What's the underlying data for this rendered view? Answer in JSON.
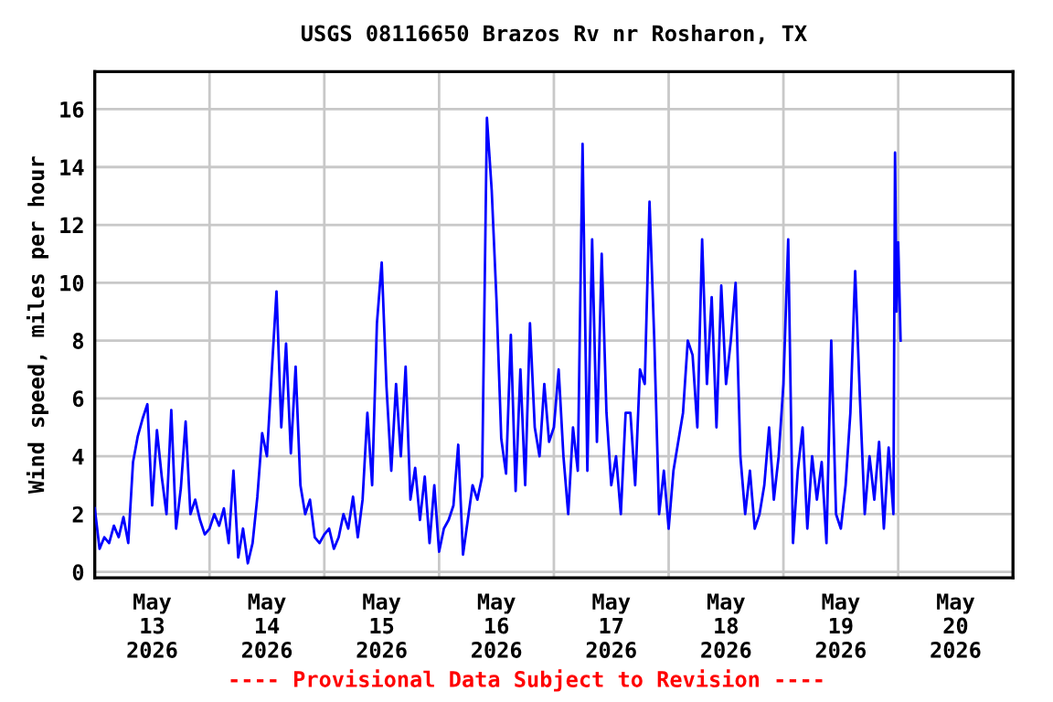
{
  "chart_data": {
    "type": "line",
    "title": "USGS 08116650 Brazos Rv nr Rosharon, TX",
    "ylabel": "Wind speed, miles per hour",
    "annotations": [
      "---- Provisional Data Subject to Revision ----"
    ],
    "x": [
      "2026-05-13T00:00",
      "2026-05-13T01:00",
      "2026-05-13T02:00",
      "2026-05-13T03:00",
      "2026-05-13T04:00",
      "2026-05-13T05:00",
      "2026-05-13T06:00",
      "2026-05-13T07:00",
      "2026-05-13T08:00",
      "2026-05-13T09:00",
      "2026-05-13T10:00",
      "2026-05-13T11:00",
      "2026-05-13T12:00",
      "2026-05-13T13:00",
      "2026-05-13T14:00",
      "2026-05-13T15:00",
      "2026-05-13T16:00",
      "2026-05-13T17:00",
      "2026-05-13T18:00",
      "2026-05-13T19:00",
      "2026-05-13T20:00",
      "2026-05-13T21:00",
      "2026-05-13T22:00",
      "2026-05-13T23:00",
      "2026-05-14T00:00",
      "2026-05-14T01:00",
      "2026-05-14T02:00",
      "2026-05-14T03:00",
      "2026-05-14T04:00",
      "2026-05-14T05:00",
      "2026-05-14T06:00",
      "2026-05-14T07:00",
      "2026-05-14T08:00",
      "2026-05-14T09:00",
      "2026-05-14T10:00",
      "2026-05-14T11:00",
      "2026-05-14T12:00",
      "2026-05-14T13:00",
      "2026-05-14T14:00",
      "2026-05-14T15:00",
      "2026-05-14T16:00",
      "2026-05-14T17:00",
      "2026-05-14T18:00",
      "2026-05-14T19:00",
      "2026-05-14T20:00",
      "2026-05-14T21:00",
      "2026-05-14T22:00",
      "2026-05-14T23:00",
      "2026-05-15T00:00",
      "2026-05-15T01:00",
      "2026-05-15T02:00",
      "2026-05-15T03:00",
      "2026-05-15T04:00",
      "2026-05-15T05:00",
      "2026-05-15T06:00",
      "2026-05-15T07:00",
      "2026-05-15T08:00",
      "2026-05-15T09:00",
      "2026-05-15T10:00",
      "2026-05-15T11:00",
      "2026-05-15T12:00",
      "2026-05-15T13:00",
      "2026-05-15T14:00",
      "2026-05-15T15:00",
      "2026-05-15T16:00",
      "2026-05-15T17:00",
      "2026-05-15T18:00",
      "2026-05-15T19:00",
      "2026-05-15T20:00",
      "2026-05-15T21:00",
      "2026-05-15T22:00",
      "2026-05-15T23:00",
      "2026-05-16T00:00",
      "2026-05-16T01:00",
      "2026-05-16T02:00",
      "2026-05-16T03:00",
      "2026-05-16T04:00",
      "2026-05-16T05:00",
      "2026-05-16T06:00",
      "2026-05-16T07:00",
      "2026-05-16T08:00",
      "2026-05-16T09:00",
      "2026-05-16T10:00",
      "2026-05-16T11:00",
      "2026-05-16T12:00",
      "2026-05-16T13:00",
      "2026-05-16T14:00",
      "2026-05-16T15:00",
      "2026-05-16T16:00",
      "2026-05-16T17:00",
      "2026-05-16T18:00",
      "2026-05-16T19:00",
      "2026-05-16T20:00",
      "2026-05-16T21:00",
      "2026-05-16T22:00",
      "2026-05-16T23:00",
      "2026-05-17T00:00",
      "2026-05-17T01:00",
      "2026-05-17T02:00",
      "2026-05-17T03:00",
      "2026-05-17T04:00",
      "2026-05-17T05:00",
      "2026-05-17T06:00",
      "2026-05-17T07:00",
      "2026-05-17T08:00",
      "2026-05-17T09:00",
      "2026-05-17T10:00",
      "2026-05-17T11:00",
      "2026-05-17T12:00",
      "2026-05-17T13:00",
      "2026-05-17T14:00",
      "2026-05-17T15:00",
      "2026-05-17T16:00",
      "2026-05-17T17:00",
      "2026-05-17T18:00",
      "2026-05-17T19:00",
      "2026-05-17T20:00",
      "2026-05-17T21:00",
      "2026-05-17T22:00",
      "2026-05-17T23:00",
      "2026-05-18T00:00",
      "2026-05-18T01:00",
      "2026-05-18T02:00",
      "2026-05-18T03:00",
      "2026-05-18T04:00",
      "2026-05-18T05:00",
      "2026-05-18T06:00",
      "2026-05-18T07:00",
      "2026-05-18T08:00",
      "2026-05-18T09:00",
      "2026-05-18T10:00",
      "2026-05-18T11:00",
      "2026-05-18T12:00",
      "2026-05-18T13:00",
      "2026-05-18T14:00",
      "2026-05-18T15:00",
      "2026-05-18T16:00",
      "2026-05-18T17:00",
      "2026-05-18T18:00",
      "2026-05-18T19:00",
      "2026-05-18T20:00",
      "2026-05-18T21:00",
      "2026-05-18T22:00",
      "2026-05-18T23:00",
      "2026-05-19T00:00",
      "2026-05-19T01:00",
      "2026-05-19T02:00",
      "2026-05-19T03:00",
      "2026-05-19T04:00",
      "2026-05-19T05:00",
      "2026-05-19T06:00",
      "2026-05-19T07:00",
      "2026-05-19T08:00",
      "2026-05-19T09:00",
      "2026-05-19T10:00",
      "2026-05-19T11:00",
      "2026-05-19T12:00",
      "2026-05-19T13:00",
      "2026-05-19T14:00",
      "2026-05-19T15:00",
      "2026-05-19T16:00",
      "2026-05-19T17:00",
      "2026-05-19T18:00",
      "2026-05-19T19:00",
      "2026-05-19T20:00",
      "2026-05-19T21:00",
      "2026-05-19T22:00",
      "2026-05-19T23:00",
      "2026-05-19T23:20",
      "2026-05-19T23:40",
      "2026-05-20T00:00",
      "2026-05-20T00:30"
    ],
    "series": [
      {
        "color": "#0000ff",
        "values": [
          2.2,
          0.8,
          1.2,
          1.0,
          1.6,
          1.2,
          1.9,
          1.0,
          3.8,
          4.7,
          5.3,
          5.8,
          2.3,
          4.9,
          3.3,
          2.0,
          5.6,
          1.5,
          2.9,
          5.2,
          2.0,
          2.5,
          1.8,
          1.3,
          1.5,
          2.0,
          1.6,
          2.2,
          1.0,
          3.5,
          0.5,
          1.5,
          0.3,
          1.0,
          2.6,
          4.8,
          4.0,
          6.9,
          9.7,
          5.0,
          7.9,
          4.1,
          7.1,
          3.0,
          2.0,
          2.5,
          1.2,
          1.0,
          1.3,
          1.5,
          0.8,
          1.2,
          2.0,
          1.5,
          2.6,
          1.2,
          2.5,
          5.5,
          3.0,
          8.6,
          10.7,
          6.4,
          3.5,
          6.5,
          4.0,
          7.1,
          2.5,
          3.6,
          1.8,
          3.3,
          1.0,
          3.0,
          0.7,
          1.5,
          1.8,
          2.3,
          4.4,
          0.6,
          1.8,
          3.0,
          2.5,
          3.3,
          15.7,
          13.2,
          9.4,
          4.6,
          3.4,
          8.2,
          2.8,
          7.0,
          3.0,
          8.6,
          5.0,
          4.0,
          6.5,
          4.5,
          5.0,
          7.0,
          4.0,
          2.0,
          5.0,
          3.5,
          14.8,
          3.5,
          11.5,
          4.5,
          11.0,
          5.5,
          3.0,
          4.0,
          2.0,
          5.5,
          5.5,
          3.0,
          7.0,
          6.5,
          12.8,
          8.0,
          2.0,
          3.5,
          1.5,
          3.5,
          4.5,
          5.5,
          8.0,
          7.5,
          5.0,
          11.5,
          6.5,
          9.5,
          5.0,
          9.9,
          6.5,
          8.0,
          10.0,
          4.0,
          2.0,
          3.5,
          1.5,
          2.0,
          3.0,
          5.0,
          2.5,
          4.0,
          6.5,
          11.5,
          1.0,
          3.5,
          5.0,
          1.5,
          4.0,
          2.5,
          3.8,
          1.0,
          8.0,
          2.0,
          1.5,
          3.0,
          5.5,
          10.4,
          6.0,
          2.0,
          4.0,
          2.5,
          4.5,
          1.5,
          4.3,
          2.0,
          14.5,
          9.0,
          11.4,
          8.0
        ]
      }
    ],
    "xlim": [
      "2026-05-13T00:00",
      "2026-05-21T00:00"
    ],
    "xticks": [
      {
        "value": "2026-05-13T12:00",
        "label": "May\n13\n2026"
      },
      {
        "value": "2026-05-14T12:00",
        "label": "May\n14\n2026"
      },
      {
        "value": "2026-05-15T12:00",
        "label": "May\n15\n2026"
      },
      {
        "value": "2026-05-16T12:00",
        "label": "May\n16\n2026"
      },
      {
        "value": "2026-05-17T12:00",
        "label": "May\n17\n2026"
      },
      {
        "value": "2026-05-18T12:00",
        "label": "May\n18\n2026"
      },
      {
        "value": "2026-05-19T12:00",
        "label": "May\n19\n2026"
      },
      {
        "value": "2026-05-20T12:00",
        "label": "May\n20\n2026"
      },
      {
        "value": "2026-05-14T00:00",
        "label": null
      },
      {
        "value": "2026-05-15T00:00",
        "label": null
      },
      {
        "value": "2026-05-16T00:00",
        "label": null
      },
      {
        "value": "2026-05-17T00:00",
        "label": null
      },
      {
        "value": "2026-05-18T00:00",
        "label": null
      },
      {
        "value": "2026-05-19T00:00",
        "label": null
      },
      {
        "value": "2026-05-20T00:00",
        "label": null
      }
    ],
    "ylim": [
      -0.2,
      17.3
    ],
    "yticks": [
      0,
      2,
      4,
      6,
      8,
      10,
      12,
      14,
      16
    ],
    "grid": true,
    "legend": false,
    "marker": "none",
    "line_style": "solid"
  }
}
